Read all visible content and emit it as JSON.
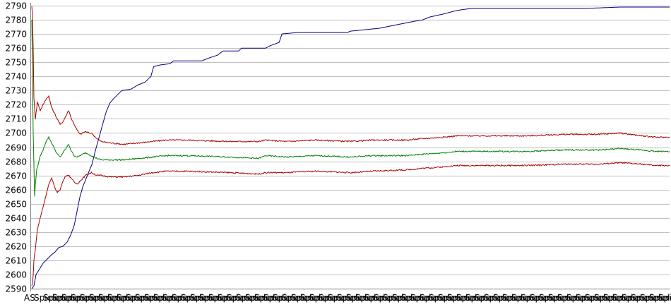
{
  "chart_data": {
    "type": "line",
    "title": "",
    "xlabel": "",
    "ylabel": "",
    "ylim": [
      2590,
      2790
    ],
    "yticks": [
      2590,
      2600,
      2610,
      2620,
      2630,
      2640,
      2650,
      2660,
      2670,
      2680,
      2690,
      2700,
      2710,
      2720,
      2730,
      2740,
      2750,
      2760,
      2770,
      2780,
      2790
    ],
    "grid": "horizontal",
    "legend": "none",
    "x_count": 900,
    "x_tick_first": "AS",
    "x_tick_text": "Spieler",
    "series": [
      {
        "color": "#000080",
        "points": [
          [
            0,
            2590
          ],
          [
            3,
            2592
          ],
          [
            6,
            2600
          ],
          [
            10,
            2603
          ],
          [
            16,
            2608
          ],
          [
            22,
            2611
          ],
          [
            28,
            2614
          ],
          [
            33,
            2616
          ],
          [
            38,
            2619
          ],
          [
            44,
            2620
          ],
          [
            50,
            2623
          ],
          [
            55,
            2628
          ],
          [
            60,
            2635
          ],
          [
            64,
            2645
          ],
          [
            68,
            2655
          ],
          [
            72,
            2662
          ],
          [
            76,
            2667
          ],
          [
            80,
            2672
          ],
          [
            85,
            2678
          ],
          [
            90,
            2688
          ],
          [
            95,
            2697
          ],
          [
            100,
            2706
          ],
          [
            105,
            2715
          ],
          [
            110,
            2721
          ],
          [
            115,
            2724
          ],
          [
            121,
            2727
          ],
          [
            127,
            2730
          ],
          [
            140,
            2731
          ],
          [
            150,
            2734
          ],
          [
            160,
            2736
          ],
          [
            168,
            2740
          ],
          [
            172,
            2747
          ],
          [
            180,
            2748
          ],
          [
            195,
            2749
          ],
          [
            200,
            2751
          ],
          [
            240,
            2751
          ],
          [
            250,
            2753
          ],
          [
            262,
            2755
          ],
          [
            270,
            2758
          ],
          [
            292,
            2758
          ],
          [
            296,
            2760
          ],
          [
            330,
            2760
          ],
          [
            338,
            2762
          ],
          [
            349,
            2764
          ],
          [
            353,
            2770
          ],
          [
            375,
            2771
          ],
          [
            445,
            2771
          ],
          [
            450,
            2772
          ],
          [
            470,
            2773
          ],
          [
            490,
            2774
          ],
          [
            500,
            2775
          ],
          [
            520,
            2777
          ],
          [
            540,
            2779
          ],
          [
            552,
            2780
          ],
          [
            562,
            2782
          ],
          [
            580,
            2784
          ],
          [
            595,
            2786
          ],
          [
            605,
            2787
          ],
          [
            620,
            2788
          ],
          [
            780,
            2788
          ],
          [
            830,
            2789
          ],
          [
            870,
            2789
          ],
          [
            900,
            2789
          ]
        ]
      },
      {
        "color": "#aa0000",
        "points": [
          [
            0,
            2790
          ],
          [
            1,
            2782
          ],
          [
            2,
            2760
          ],
          [
            3,
            2725
          ],
          [
            5,
            2710
          ],
          [
            8,
            2722
          ],
          [
            12,
            2716
          ],
          [
            16,
            2720
          ],
          [
            20,
            2724
          ],
          [
            24,
            2726
          ],
          [
            28,
            2718
          ],
          [
            32,
            2714
          ],
          [
            36,
            2710
          ],
          [
            40,
            2706
          ],
          [
            44,
            2708
          ],
          [
            48,
            2712
          ],
          [
            52,
            2716
          ],
          [
            56,
            2710
          ],
          [
            60,
            2706
          ],
          [
            64,
            2702
          ],
          [
            68,
            2699
          ],
          [
            72,
            2700
          ],
          [
            76,
            2701
          ],
          [
            80,
            2700
          ],
          [
            84,
            2700
          ],
          [
            88,
            2698
          ],
          [
            92,
            2696
          ],
          [
            98,
            2694
          ],
          [
            110,
            2693
          ],
          [
            130,
            2692
          ],
          [
            150,
            2693
          ],
          [
            170,
            2694
          ],
          [
            190,
            2695
          ],
          [
            220,
            2695
          ],
          [
            280,
            2694
          ],
          [
            320,
            2694
          ],
          [
            330,
            2695
          ],
          [
            360,
            2694
          ],
          [
            400,
            2695
          ],
          [
            450,
            2694
          ],
          [
            480,
            2695
          ],
          [
            530,
            2695
          ],
          [
            550,
            2696
          ],
          [
            580,
            2697
          ],
          [
            600,
            2698
          ],
          [
            650,
            2698
          ],
          [
            700,
            2698
          ],
          [
            750,
            2699
          ],
          [
            800,
            2699
          ],
          [
            830,
            2700
          ],
          [
            860,
            2698
          ],
          [
            880,
            2697
          ],
          [
            900,
            2697
          ]
        ]
      },
      {
        "color": "#008000",
        "points": [
          [
            0,
            2780
          ],
          [
            1,
            2740
          ],
          [
            2,
            2700
          ],
          [
            3,
            2678
          ],
          [
            4,
            2655
          ],
          [
            5,
            2664
          ],
          [
            7,
            2674
          ],
          [
            10,
            2680
          ],
          [
            13,
            2685
          ],
          [
            16,
            2688
          ],
          [
            20,
            2694
          ],
          [
            24,
            2697
          ],
          [
            28,
            2693
          ],
          [
            32,
            2689
          ],
          [
            36,
            2685
          ],
          [
            40,
            2683
          ],
          [
            44,
            2686
          ],
          [
            48,
            2689
          ],
          [
            52,
            2692
          ],
          [
            56,
            2687
          ],
          [
            60,
            2684
          ],
          [
            64,
            2683
          ],
          [
            68,
            2684
          ],
          [
            72,
            2685
          ],
          [
            76,
            2686
          ],
          [
            80,
            2685
          ],
          [
            84,
            2684
          ],
          [
            88,
            2683
          ],
          [
            92,
            2682
          ],
          [
            98,
            2681
          ],
          [
            110,
            2681
          ],
          [
            130,
            2681
          ],
          [
            150,
            2682
          ],
          [
            170,
            2683
          ],
          [
            190,
            2684
          ],
          [
            220,
            2684
          ],
          [
            280,
            2683
          ],
          [
            320,
            2682
          ],
          [
            330,
            2684
          ],
          [
            360,
            2683
          ],
          [
            400,
            2684
          ],
          [
            450,
            2683
          ],
          [
            480,
            2684
          ],
          [
            530,
            2684
          ],
          [
            550,
            2685
          ],
          [
            580,
            2686
          ],
          [
            600,
            2687
          ],
          [
            650,
            2687
          ],
          [
            700,
            2687
          ],
          [
            750,
            2688
          ],
          [
            800,
            2688
          ],
          [
            830,
            2689
          ],
          [
            860,
            2688
          ],
          [
            880,
            2687
          ],
          [
            900,
            2687
          ]
        ]
      },
      {
        "color": "#aa0000",
        "points": [
          [
            0,
            2592
          ],
          [
            1,
            2594
          ],
          [
            2,
            2600
          ],
          [
            3,
            2610
          ],
          [
            5,
            2618
          ],
          [
            8,
            2632
          ],
          [
            12,
            2640
          ],
          [
            16,
            2648
          ],
          [
            20,
            2656
          ],
          [
            24,
            2664
          ],
          [
            28,
            2668
          ],
          [
            32,
            2662
          ],
          [
            36,
            2658
          ],
          [
            40,
            2660
          ],
          [
            44,
            2666
          ],
          [
            48,
            2670
          ],
          [
            52,
            2670
          ],
          [
            56,
            2668
          ],
          [
            60,
            2665
          ],
          [
            64,
            2664
          ],
          [
            68,
            2666
          ],
          [
            72,
            2668
          ],
          [
            76,
            2670
          ],
          [
            80,
            2671
          ],
          [
            84,
            2672
          ],
          [
            88,
            2671
          ],
          [
            92,
            2670
          ],
          [
            98,
            2670
          ],
          [
            110,
            2669
          ],
          [
            130,
            2669
          ],
          [
            150,
            2670
          ],
          [
            170,
            2672
          ],
          [
            190,
            2673
          ],
          [
            220,
            2673
          ],
          [
            280,
            2672
          ],
          [
            320,
            2671
          ],
          [
            330,
            2672
          ],
          [
            360,
            2672
          ],
          [
            400,
            2673
          ],
          [
            450,
            2672
          ],
          [
            480,
            2673
          ],
          [
            530,
            2674
          ],
          [
            550,
            2675
          ],
          [
            580,
            2676
          ],
          [
            600,
            2677
          ],
          [
            650,
            2677
          ],
          [
            700,
            2677
          ],
          [
            750,
            2678
          ],
          [
            800,
            2678
          ],
          [
            830,
            2679
          ],
          [
            860,
            2678
          ],
          [
            880,
            2677
          ],
          [
            900,
            2677
          ]
        ]
      }
    ]
  }
}
